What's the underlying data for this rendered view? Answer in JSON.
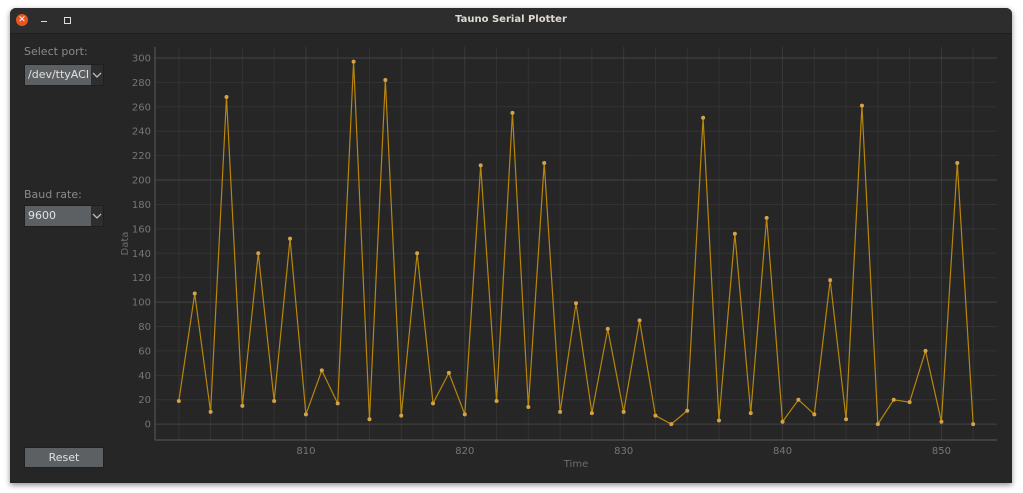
{
  "window": {
    "title": "Tauno Serial Plotter"
  },
  "sidebar": {
    "port_label": "Select port:",
    "port_value": "/dev/ttyACM",
    "baud_label": "Baud rate:",
    "baud_value": "9600",
    "reset_label": "Reset"
  },
  "colors": {
    "line": "#b8860b",
    "marker": "#d4a24a",
    "background": "#262626",
    "grid": "#333333",
    "accent_close": "#e95420"
  },
  "chart_data": {
    "type": "line",
    "title": "",
    "xlabel": "Time",
    "ylabel": "Data",
    "xlim": [
      800.5,
      853.5
    ],
    "ylim": [
      -13,
      309
    ],
    "xticks": [
      810,
      820,
      830,
      840,
      850
    ],
    "yticks": [
      0,
      20,
      40,
      60,
      80,
      100,
      120,
      140,
      160,
      180,
      200,
      220,
      240,
      260,
      280,
      300
    ],
    "grid": true,
    "markers": true,
    "x": [
      802,
      803,
      804,
      805,
      806,
      807,
      808,
      809,
      810,
      811,
      812,
      813,
      814,
      815,
      816,
      817,
      818,
      819,
      820,
      821,
      822,
      823,
      824,
      825,
      826,
      827,
      828,
      829,
      830,
      831,
      832,
      833,
      834,
      835,
      836,
      837,
      838,
      839,
      840,
      841,
      842,
      843,
      844,
      845,
      846,
      847,
      848,
      849,
      850,
      851,
      852
    ],
    "y": [
      19,
      107,
      10,
      268,
      15,
      140,
      19,
      152,
      8,
      44,
      17,
      297,
      4,
      282,
      7,
      140,
      17,
      42,
      8,
      212,
      19,
      255,
      14,
      214,
      10,
      99,
      9,
      78,
      10,
      85,
      7,
      0,
      11,
      251,
      3,
      156,
      9,
      169,
      2,
      20,
      8,
      118,
      4,
      261,
      0,
      20,
      18,
      60,
      2,
      214,
      0
    ]
  }
}
